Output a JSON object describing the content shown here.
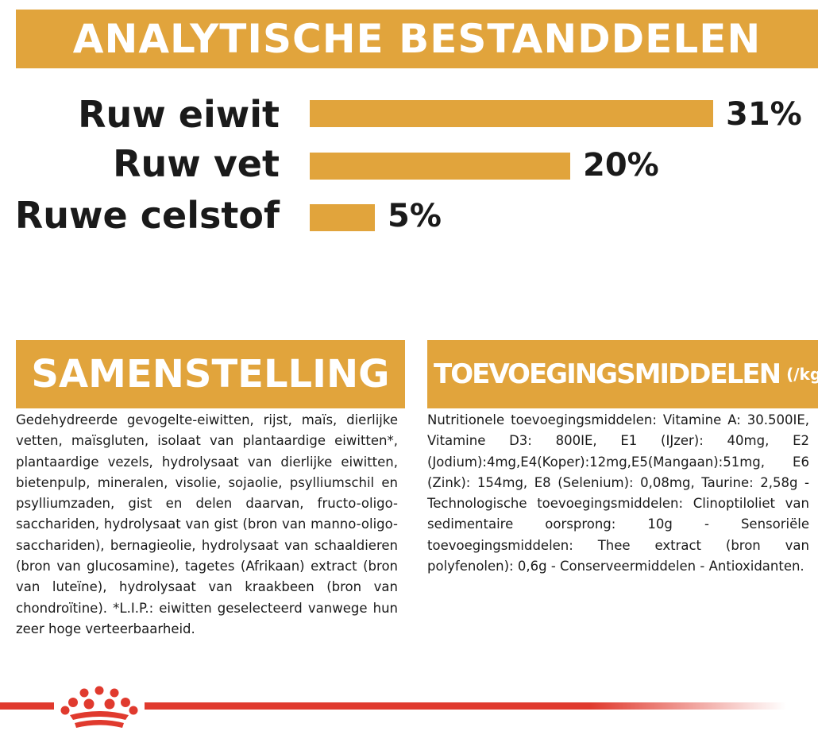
{
  "header": {
    "title": "ANALYTISCHE BESTANDDELEN"
  },
  "analysis": {
    "rows": [
      {
        "label": "Ruw eiwit",
        "value": 31,
        "value_text": "31%"
      },
      {
        "label": "Ruw vet",
        "value": 20,
        "value_text": "20%"
      },
      {
        "label": "Ruwe celstof",
        "value": 5,
        "value_text": "5%"
      }
    ],
    "bar_color": "#e1a43c"
  },
  "composition": {
    "title": "SAMENSTELLING",
    "text": "Gedehydreerde gevogelte-eiwitten, rijst, maïs, dierlijke vetten, maïsgluten, isolaat van plantaardige eiwitten*, plantaardige vezels, hydrolysaat van dierlijke eiwitten, bietenpulp, mineralen, visolie, sojaolie, psylliumschil en psylliumzaden, gist en delen daarvan, fructo-oligo-sacchariden, hydrolysaat van gist (bron van manno-oligo-sacchariden), bernagieolie, hydrolysaat van schaaldieren (bron van glucosamine), tagetes (Afrikaan) extract (bron van luteïne), hydrolysaat van kraakbeen (bron van chondroïtine). *L.I.P.: eiwitten geselecteerd vanwege hun zeer hoge verteerbaarheid."
  },
  "additives": {
    "title": "TOEVOEGINGSMIDDELEN",
    "unit": "(/kg)",
    "text": "Nutritionele toevoegingsmiddelen: Vitamine A: 30.500IE, Vitamine D3: 800IE, E1 (IJzer): 40mg, E2 (Jodium):4mg,E4(Koper):12mg,E5(Mangaan):51mg, E6 (Zink): 154mg, E8 (Selenium): 0,08mg, Taurine: 2,58g - Technologische toevoegingsmiddelen: Clinoptiloliet van sedimentaire oorsprong: 10g - Sensoriële toevoegingsmiddelen: Thee extract (bron van polyfenolen): 0,6g - Conserveermiddelen - Antioxidanten."
  },
  "footer": {
    "logo_icon": "crown-logo-icon",
    "accent": "#e03a2e"
  }
}
